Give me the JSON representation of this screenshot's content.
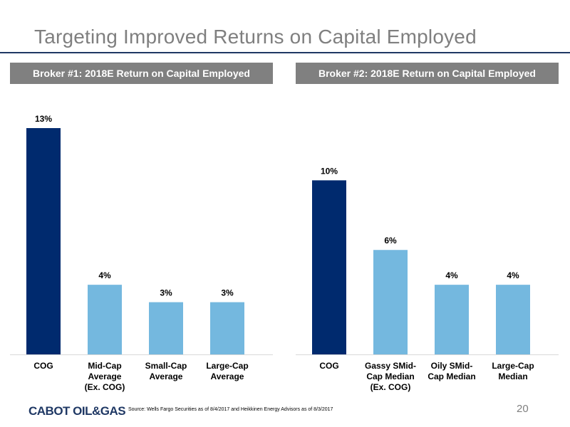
{
  "page": {
    "title": "Targeting Improved Returns on Capital Employed",
    "footer_logo": "CABOT OIL&GAS",
    "source_note": "Source: Wells Fargo Securities as of 8/4/2017 and Heikkinen Energy Advisors as of 8/3/2017",
    "page_number": "20"
  },
  "colors": {
    "primary_bar": "#002a6e",
    "comparison_bar": "#74b8df",
    "header_background": "#808080",
    "title_text": "#7f7f7f"
  },
  "chart_data": [
    {
      "type": "bar",
      "title": "Broker #1: 2018E Return on Capital Employed",
      "categories": [
        "COG",
        "Mid-Cap Average (Ex. COG)",
        "Small-Cap Average",
        "Large-Cap Average"
      ],
      "category_lines": [
        [
          "COG"
        ],
        [
          "Mid-Cap",
          "Average",
          "(Ex. COG)"
        ],
        [
          "Small-Cap",
          "Average"
        ],
        [
          "Large-Cap",
          "Average"
        ]
      ],
      "values": [
        13,
        4,
        3,
        3
      ],
      "data_labels": [
        "13%",
        "4%",
        "3%",
        "3%"
      ],
      "unit": "%",
      "ylim": [
        0,
        13
      ],
      "grid": false,
      "legend": "none",
      "xlabel": "",
      "ylabel": ""
    },
    {
      "type": "bar",
      "title": "Broker #2: 2018E Return on Capital Employed",
      "categories": [
        "COG",
        "Gassy SMid-Cap Median (Ex. COG)",
        "Oily SMid-Cap Median",
        "Large-Cap Median"
      ],
      "category_lines": [
        [
          "COG"
        ],
        [
          "Gassy SMid-",
          "Cap Median",
          "(Ex. COG)"
        ],
        [
          "Oily SMid-",
          "Cap Median"
        ],
        [
          "Large-Cap",
          "Median"
        ]
      ],
      "values": [
        10,
        6,
        4,
        4
      ],
      "data_labels": [
        "10%",
        "6%",
        "4%",
        "4%"
      ],
      "unit": "%",
      "ylim": [
        0,
        13
      ],
      "grid": false,
      "legend": "none",
      "xlabel": "",
      "ylabel": ""
    }
  ]
}
